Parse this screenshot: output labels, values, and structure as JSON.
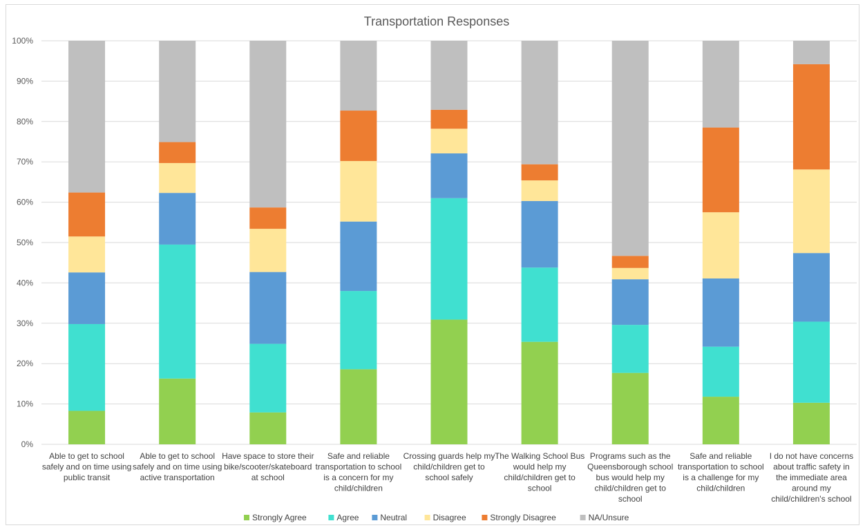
{
  "chart_data": {
    "type": "bar",
    "stacked": true,
    "percent": true,
    "title": "Transportation Responses",
    "xlabel": "",
    "ylabel": "",
    "ylim": [
      0,
      100
    ],
    "yticks": [
      "0%",
      "10%",
      "20%",
      "30%",
      "40%",
      "50%",
      "60%",
      "70%",
      "80%",
      "90%",
      "100%"
    ],
    "grid": true,
    "legend_position": "bottom",
    "categories": [
      "Able to get to school safely and on time using public transit",
      "Able to get to school safely and on time using active transportation",
      "Have space to store their bike/scooter/skateboard at school",
      "Safe and reliable transportation to school is a concern for my child/children",
      "Crossing guards help my child/children get to school safely",
      "The Walking School Bus would help my child/children get to school",
      "Programs such as the Queensborough school bus would help my child/children get to school",
      "Safe and reliable transportation to school is a challenge for my child/children",
      "I do not have concerns about traffic safety in the immediate area around my child/children's school"
    ],
    "category_lines": [
      [
        "Able to get to school",
        "safely and on time using",
        "public transit"
      ],
      [
        "Able to get to school",
        "safely and on time using",
        "active transportation"
      ],
      [
        "Have space to store their",
        "bike/scooter/skateboard",
        "at school"
      ],
      [
        "Safe and reliable",
        "transportation to school",
        "is a concern for my",
        "child/children"
      ],
      [
        "Crossing guards help my",
        "child/children get to",
        "school safely"
      ],
      [
        "The Walking School Bus",
        "would help my",
        "child/children get to",
        "school"
      ],
      [
        "Programs such as the",
        "Queensborough school",
        "bus would help my",
        "child/children get to",
        "school"
      ],
      [
        "Safe and reliable",
        "transportation to school",
        "is a challenge for my",
        "child/children"
      ],
      [
        "I do not have concerns",
        "about traffic safety in",
        "the immediate area",
        "around my",
        "child/children's school"
      ]
    ],
    "series": [
      {
        "name": "Strongly Agree",
        "color": "#92d050",
        "values": [
          8.3,
          16.3,
          7.9,
          18.6,
          30.9,
          25.4,
          17.7,
          11.8,
          10.3
        ]
      },
      {
        "name": "Agree",
        "color": "#40e0d0",
        "values": [
          21.5,
          33.2,
          17.0,
          19.4,
          30.1,
          18.4,
          11.9,
          12.4,
          20.1
        ]
      },
      {
        "name": "Neutral",
        "color": "#5b9bd5",
        "values": [
          12.8,
          12.8,
          17.8,
          17.2,
          11.1,
          16.5,
          11.3,
          16.9,
          17.0
        ]
      },
      {
        "name": "Disagree",
        "color": "#ffe699",
        "values": [
          8.9,
          7.4,
          10.7,
          15.0,
          6.1,
          5.1,
          2.8,
          16.4,
          20.7
        ]
      },
      {
        "name": "Strongly Disagree",
        "color": "#ed7d31",
        "values": [
          10.9,
          5.2,
          5.3,
          12.5,
          4.7,
          4.0,
          3.0,
          21.0,
          26.1
        ]
      },
      {
        "name": "NA/Unsure",
        "color": "#bfbfbf",
        "values": [
          37.6,
          25.1,
          41.3,
          17.3,
          17.1,
          30.6,
          53.3,
          21.5,
          5.8
        ]
      }
    ]
  }
}
